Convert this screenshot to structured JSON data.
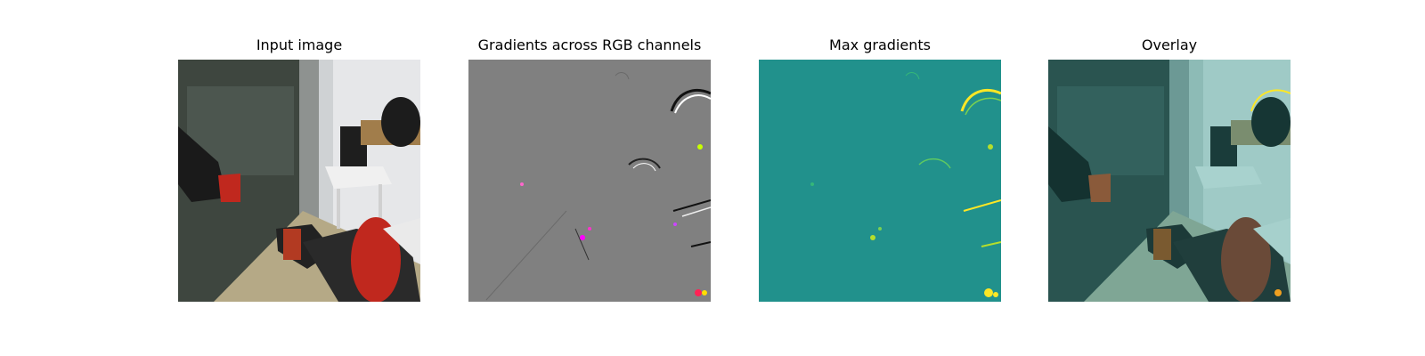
{
  "figure": {
    "panels": [
      {
        "title": "Input image",
        "content": "robot-scene-photo"
      },
      {
        "title": "Gradients across RGB channels",
        "content": "gradient-map-gray"
      },
      {
        "title": "Max gradients",
        "content": "max-gradient-map-teal"
      },
      {
        "title": "Overlay",
        "content": "overlay-photo-teal"
      }
    ],
    "colors": {
      "gradient_background": "#808080",
      "max_gradient_background": "#21918c",
      "highlight_yellow": "#fde725",
      "robot_red": "#c0281e"
    }
  }
}
